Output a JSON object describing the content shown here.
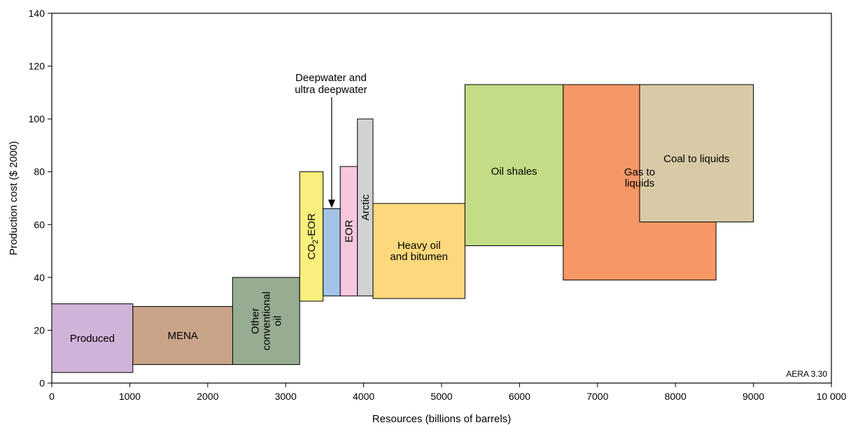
{
  "chart_data": {
    "type": "bar",
    "subtype": "variable-width cost bars (supply curve)",
    "xlabel": "Resources (billions of barrels)",
    "ylabel": "Production cost ($ 2000)",
    "xlim": [
      0,
      10000
    ],
    "ylim": [
      0,
      140
    ],
    "x_ticks": [
      "0",
      "1000",
      "2000",
      "3000",
      "4000",
      "5000",
      "6000",
      "7000",
      "8000",
      "9000",
      "10 000"
    ],
    "y_ticks": [
      "0",
      "20",
      "40",
      "60",
      "80",
      "100",
      "120",
      "140"
    ],
    "grid": false,
    "source_label": "AERA 3.30",
    "callout_label_line1": "Deepwater and",
    "callout_label_line2": "ultra deepwater",
    "bars": [
      {
        "id": "produced",
        "lines": [
          "Produced"
        ],
        "x0": 0,
        "x1": 1040,
        "y0": 4,
        "y1": 30,
        "color": "#d0b4d8",
        "vertical": false
      },
      {
        "id": "mena",
        "lines": [
          "MENA"
        ],
        "x0": 1040,
        "x1": 2320,
        "y0": 7,
        "y1": 29,
        "color": "#c9a489",
        "vertical": false
      },
      {
        "id": "other-conventional-oil",
        "lines": [
          "Other",
          "conventional",
          "oil"
        ],
        "x0": 2320,
        "x1": 3180,
        "y0": 7,
        "y1": 40,
        "color": "#96ad92",
        "vertical": true
      },
      {
        "id": "co2-eor",
        "lines": [
          "CO",
          "2",
          "-EOR"
        ],
        "x0": 3180,
        "x1": 3480,
        "y0": 31,
        "y1": 80,
        "color": "#f9ef7c",
        "vertical": true,
        "subscript": true
      },
      {
        "id": "deepwater",
        "lines": [],
        "x0": 3480,
        "x1": 3700,
        "y0": 33,
        "y1": 66,
        "color": "#a4c3e8",
        "vertical": false
      },
      {
        "id": "eor",
        "lines": [
          "EOR"
        ],
        "x0": 3700,
        "x1": 3920,
        "y0": 33,
        "y1": 82,
        "color": "#f6c7dd",
        "vertical": true
      },
      {
        "id": "arctic",
        "lines": [
          "Arctic"
        ],
        "x0": 3920,
        "x1": 4120,
        "y0": 33,
        "y1": 100,
        "color": "#d2d2d2",
        "vertical": true
      },
      {
        "id": "heavy-oil",
        "lines": [
          "Heavy oil",
          "and bitumen"
        ],
        "x0": 4120,
        "x1": 5300,
        "y0": 32,
        "y1": 68,
        "color": "#fdd87c",
        "vertical": false
      },
      {
        "id": "oil-shales",
        "lines": [
          "Oil shales"
        ],
        "x0": 5300,
        "x1": 6560,
        "y0": 52,
        "y1": 113,
        "color": "#c3dc86",
        "vertical": false
      },
      {
        "id": "gas-to-liquids",
        "lines": [
          "Gas to",
          "liquids"
        ],
        "x0": 6560,
        "x1": 8520,
        "y0": 39,
        "y1": 113,
        "color": "#f69766",
        "vertical": false
      },
      {
        "id": "coal-to-liquids",
        "lines": [
          "Coal to liquids"
        ],
        "x0": 7540,
        "x1": 9000,
        "y0": 61,
        "y1": 113,
        "color": "#d8caa6",
        "vertical": false
      }
    ]
  }
}
